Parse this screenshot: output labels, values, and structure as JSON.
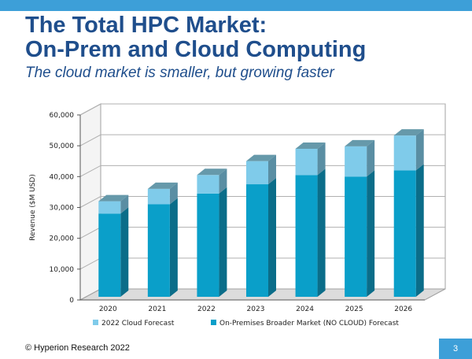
{
  "slide": {
    "title_line1": "The Total HPC Market:",
    "title_line2": "On-Prem and Cloud Computing",
    "subtitle": "The cloud market is smaller, but growing faster",
    "footer": "© Hyperion Research 2022",
    "page_number": "3"
  },
  "colors": {
    "accent_bar": "#3d9fd8",
    "title": "#1f4e8c",
    "onprem_front": "#0a9fc9",
    "onprem_side": "#0b6d89",
    "cloud_front": "#7fcbea",
    "cloud_top": "#6699aa"
  },
  "chart_data": {
    "type": "bar",
    "stacked": true,
    "three_d": true,
    "categories": [
      "2020",
      "2021",
      "2022",
      "2023",
      "2024",
      "2025",
      "2026"
    ],
    "series": [
      {
        "name": "On-Premises Broader Market (NO CLOUD) Forecast",
        "values": [
          27000,
          30000,
          33500,
          36500,
          39500,
          39000,
          41000
        ]
      },
      {
        "name": "2022 Cloud Forecast",
        "values": [
          4000,
          5000,
          6000,
          7500,
          8500,
          9800,
          11300
        ]
      }
    ],
    "ylabel": "Revenue ($M USD)",
    "ylim": [
      0,
      60000
    ],
    "yticks": [
      "0",
      "10,000",
      "20,000",
      "30,000",
      "40,000",
      "50,000",
      "60,000"
    ],
    "legend_position": "bottom",
    "legend_order": [
      "2022 Cloud Forecast",
      "On-Premises Broader Market (NO CLOUD) Forecast"
    ],
    "grid": true
  }
}
